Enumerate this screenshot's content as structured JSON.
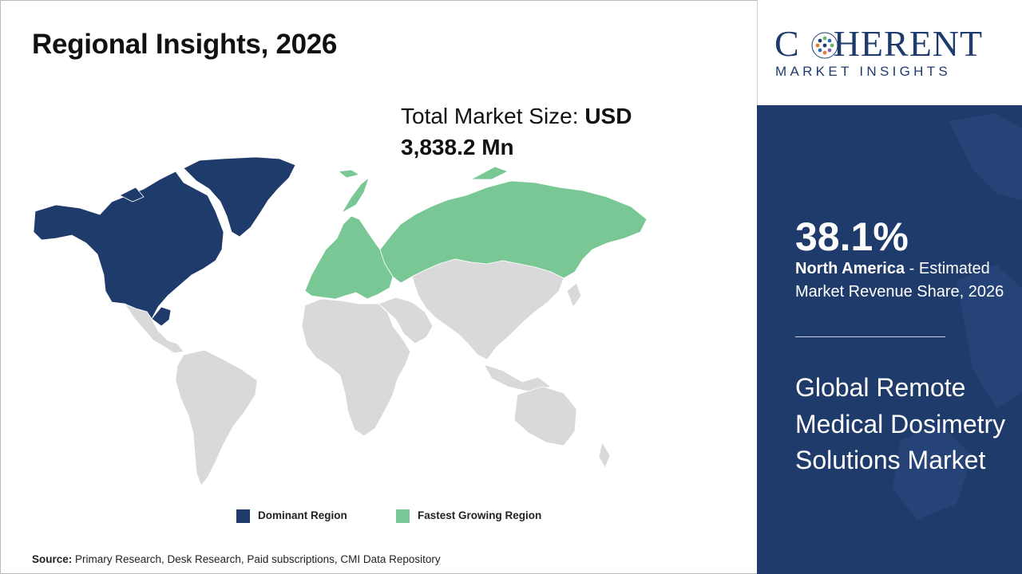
{
  "title": "Regional Insights, 2026",
  "market_size": {
    "label": "Total Market Size: ",
    "value": "USD 3,838.2 Mn"
  },
  "map": {
    "regions": [
      {
        "name": "North America",
        "role": "dominant",
        "color": "#1f3b6b"
      },
      {
        "name": "Europe",
        "role": "fastest",
        "color": "#79c795"
      },
      {
        "name": "Russia",
        "role": "fastest",
        "color": "#79c795"
      },
      {
        "name": "Other",
        "role": "none",
        "color": "#d9d9d9"
      }
    ]
  },
  "legend": [
    {
      "label": "Dominant Region",
      "color": "#1f3b6b"
    },
    {
      "label": "Fastest Growing Region",
      "color": "#79c795"
    }
  ],
  "source": {
    "label": "Source:",
    "text": " Primary Research, Desk Research, Paid subscriptions, CMI Data Repository"
  },
  "logo": {
    "word_left": "C",
    "word_right": "HERENT",
    "subtitle": "MARKET INSIGHTS"
  },
  "stat": {
    "value": "38.1%",
    "region": "North America",
    "description": " - Estimated Market Revenue Share, 2026"
  },
  "market_name": "Global Remote Medical Dosimetry Solutions Market",
  "colors": {
    "navy": "#1f3b6b",
    "green": "#79c795",
    "land": "#d9d9d9"
  }
}
